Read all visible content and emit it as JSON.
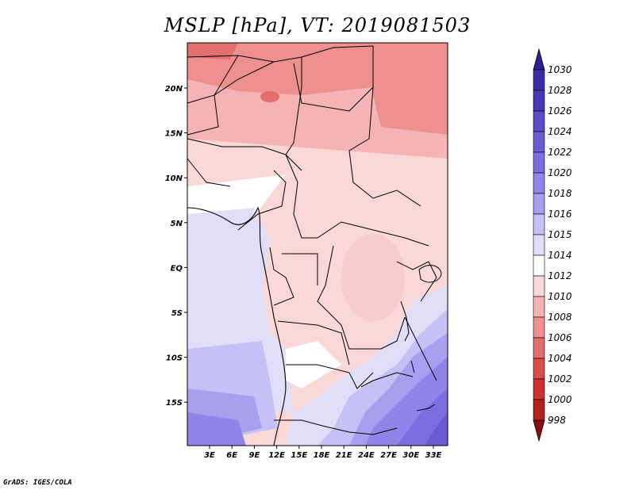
{
  "title": "MSLP [hPa], VT: 2019081503",
  "credit": "GrADS: IGES/COLA",
  "map": {
    "lat_labels": [
      "20N",
      "15N",
      "10N",
      "5N",
      "EQ",
      "5S",
      "10S",
      "15S"
    ],
    "lon_labels": [
      "3E",
      "6E",
      "9E",
      "12E",
      "15E",
      "18E",
      "21E",
      "24E",
      "27E",
      "30E",
      "33E"
    ]
  },
  "colorbar": {
    "levels": [
      "1030",
      "1028",
      "1026",
      "1024",
      "1022",
      "1020",
      "1018",
      "1016",
      "1015",
      "1014",
      "1012",
      "1010",
      "1008",
      "1006",
      "1004",
      "1002",
      "1000",
      "998"
    ],
    "colors": [
      "#3c2ca8",
      "#4838b8",
      "#5a4ac6",
      "#6a5ad4",
      "#7c6ee0",
      "#8f84e8",
      "#a89ff0",
      "#c5c0f5",
      "#e1defa",
      "#ffffff",
      "#fbd8d8",
      "#f6b3b3",
      "#ee9090",
      "#e26e6e",
      "#d84c4c",
      "#cc3030",
      "#b51f1f",
      "#9a1414"
    ],
    "top_arrow_color": "#2a1f96",
    "bottom_arrow_color": "#8a0f0f"
  }
}
